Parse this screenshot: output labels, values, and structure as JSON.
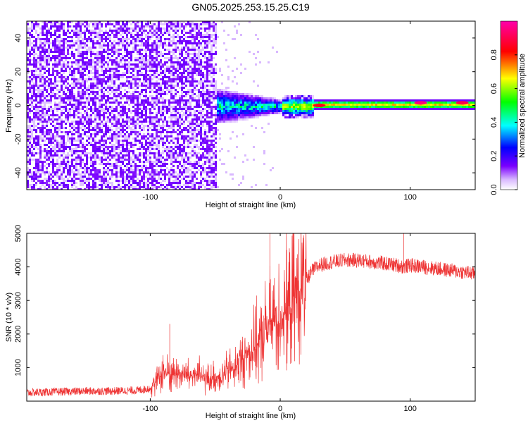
{
  "title": "GN05.2025.253.15.25.C19",
  "chart_data": [
    {
      "type": "heatmap",
      "xlabel": "Height of straight line (km)",
      "ylabel": "Frequency (Hz)",
      "xlim": [
        -195,
        150
      ],
      "ylim": [
        -50,
        50
      ],
      "xticks": [
        -100,
        0,
        100
      ],
      "xtick_labels": [
        "-100",
        "0",
        "100"
      ],
      "yticks": [
        -40,
        -20,
        0,
        20,
        40
      ],
      "ytick_labels": [
        "-40",
        "-20",
        "0",
        "20",
        "40"
      ],
      "colorbar": {
        "label": "Normalized spectral amplitude",
        "range": [
          0,
          1
        ],
        "ticks": [
          0,
          0.2,
          0.4,
          0.6,
          0.8
        ],
        "tick_labels": [
          "0.0",
          "0.2",
          "0.4",
          "0.6",
          "0.8"
        ],
        "colormap": [
          "#ffffff",
          "#7a00ff",
          "#0000ff",
          "#00ffff",
          "#00ff00",
          "#ffff00",
          "#ff0000",
          "#ff00ff"
        ]
      },
      "description_regions": [
        {
          "x_range": [
            -195,
            -50
          ],
          "freq_range": [
            -50,
            50
          ],
          "amplitude": 0.1
        },
        {
          "x_range": [
            -50,
            20
          ],
          "freq_range": [
            -8,
            8
          ],
          "amplitude": 0.4
        },
        {
          "x_range": [
            20,
            150
          ],
          "freq_range": [
            -2,
            2
          ],
          "amplitude": 0.7
        }
      ],
      "peak_points": [
        {
          "x": 108,
          "freq": 1.5,
          "amplitude": 0.95
        },
        {
          "x": 140,
          "freq": 1.5,
          "amplitude": 0.9
        },
        {
          "x": 30,
          "freq": 0,
          "amplitude": 0.85
        }
      ]
    },
    {
      "type": "line",
      "xlabel": "Height of straight line (km)",
      "ylabel": "SNR (10 * v/v)",
      "xlim": [
        -195,
        150
      ],
      "ylim": [
        0,
        5000
      ],
      "xticks": [
        -100,
        0,
        100
      ],
      "xtick_labels": [
        "-100",
        "0",
        "100"
      ],
      "yticks": [
        1000,
        2000,
        3000,
        4000,
        5000
      ],
      "ytick_labels": [
        "1000",
        "2000",
        "3000",
        "4000",
        "5000"
      ],
      "line_color": "#ee3333",
      "series": [
        {
          "x": [
            -195,
            -170,
            -150,
            -130,
            -110,
            -100,
            -95,
            -90,
            -85,
            -80,
            -75,
            -70,
            -65,
            -60,
            -55,
            -50,
            -45,
            -40,
            -35,
            -30,
            -25,
            -20,
            -15,
            -10,
            -5,
            0,
            5,
            10,
            15,
            20,
            25,
            30,
            40,
            50,
            60,
            70,
            80,
            90,
            95,
            100,
            110,
            120,
            130,
            140,
            150
          ],
          "y": [
            250,
            280,
            300,
            300,
            320,
            380,
            600,
            900,
            800,
            850,
            800,
            750,
            800,
            700,
            650,
            700,
            800,
            900,
            1000,
            1200,
            1400,
            1600,
            1800,
            2200,
            2400,
            2500,
            2700,
            3000,
            3300,
            3600,
            3900,
            4050,
            4150,
            4200,
            4200,
            4150,
            4100,
            4050,
            4000,
            4050,
            4000,
            3950,
            3900,
            3850,
            3800
          ]
        }
      ],
      "spikes": [
        {
          "x": -8,
          "y": 5000
        },
        {
          "x": 95,
          "y": 5000
        },
        {
          "x": 5,
          "y": 4500
        },
        {
          "x": -85,
          "y": 2300
        }
      ]
    }
  ]
}
